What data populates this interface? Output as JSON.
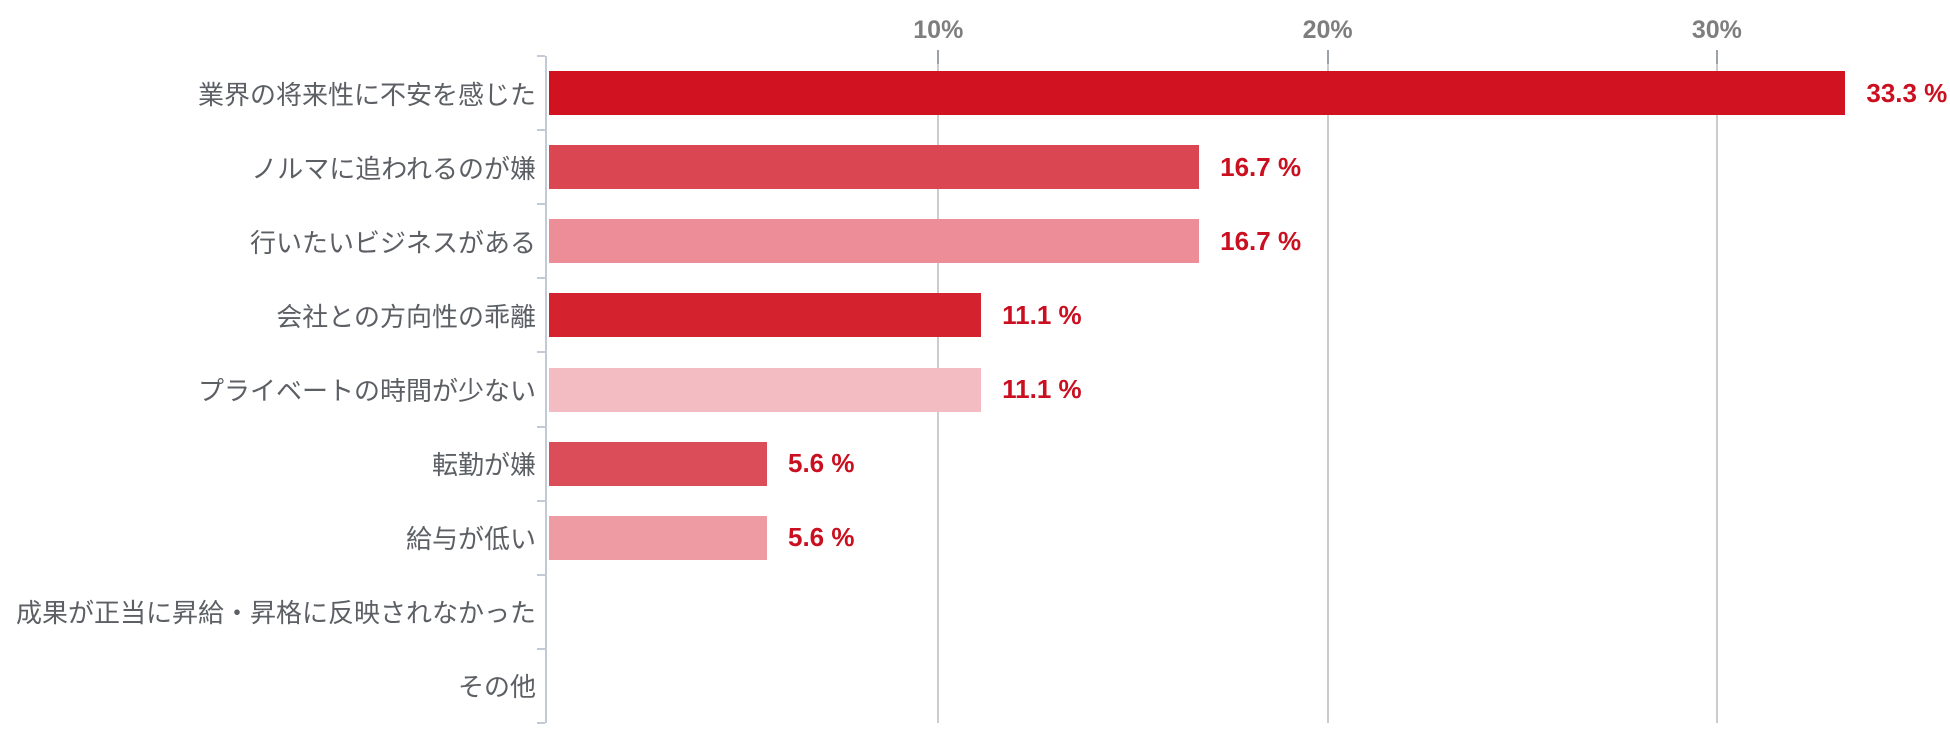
{
  "chart_data": {
    "type": "bar",
    "orientation": "horizontal",
    "title": "",
    "xlabel": "",
    "ylabel": "",
    "xlim": [
      0,
      34
    ],
    "grid": "vertical-on",
    "legend": "none",
    "categories": [
      "業界の将来性に不安を感じた",
      "ノルマに追われるのが嫌",
      "行いたいビジネスがある",
      "会社との方向性の乖離",
      "プライベートの時間が少ない",
      "転勤が嫌",
      "給与が低い",
      "成果が正当に昇給・昇格に反映されなかった",
      "その他"
    ],
    "values": [
      33.3,
      16.7,
      16.7,
      11.1,
      11.1,
      5.6,
      5.6,
      0,
      0
    ],
    "value_labels": [
      "33.3 %",
      "16.7 %",
      "16.7 %",
      "11.1 %",
      "11.1 %",
      "5.6 %",
      "5.6 %",
      "",
      ""
    ],
    "bar_colors": [
      "#d11321",
      "#da4753",
      "#ec8d97",
      "#d5222f",
      "#f3bcc2",
      "#db4d59",
      "#ef9ba4",
      "",
      ""
    ],
    "x_ticks": [
      {
        "value": 10,
        "label": "10%"
      },
      {
        "value": 20,
        "label": "20%"
      },
      {
        "value": 30,
        "label": "30%"
      }
    ]
  },
  "colors": {
    "value_text": "#ca1020",
    "tick_label_text": "#7e7e7e",
    "category_text": "#5c5f64",
    "axis_line": "#c2cad5",
    "gridline": "#cccccc",
    "top_tick": "#9ba1a7",
    "background": "#ffffff"
  }
}
